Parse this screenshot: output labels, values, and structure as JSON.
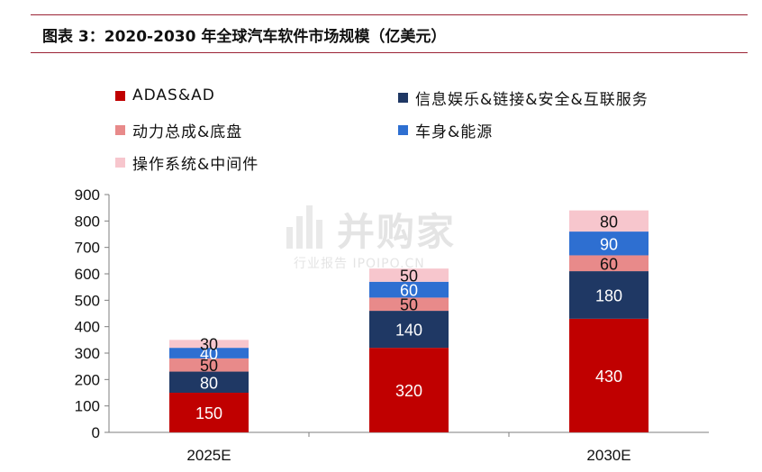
{
  "title": "图表 3：2020-2030 年全球汽车软件市场规模（亿美元）",
  "watermark": {
    "main": "并购家",
    "sub": "行业报告 IPOIPO.CN"
  },
  "chart_data": {
    "type": "bar",
    "stacked": true,
    "categories": [
      "2025E",
      "",
      "2030E"
    ],
    "ylim": [
      0,
      900
    ],
    "yticks": [
      0,
      100,
      200,
      300,
      400,
      500,
      600,
      700,
      800,
      900
    ],
    "grid": false,
    "legend_position": "top",
    "series": [
      {
        "name": "ADAS&AD",
        "color": "#c00000",
        "label_color": "#ffffff",
        "values": [
          150,
          320,
          430
        ]
      },
      {
        "name": "信息娱乐&链接&安全&互联服务",
        "color": "#1f3864",
        "label_color": "#ffffff",
        "values": [
          80,
          140,
          180
        ]
      },
      {
        "name": "动力总成&底盘",
        "color": "#e88a8a",
        "label_color": "#111111",
        "values": [
          50,
          50,
          60
        ]
      },
      {
        "name": "车身&能源",
        "color": "#2e6fd1",
        "label_color": "#ffffff",
        "values": [
          40,
          60,
          90
        ]
      },
      {
        "name": "操作系统&中间件",
        "color": "#f7c6cd",
        "label_color": "#111111",
        "values": [
          30,
          50,
          80
        ]
      }
    ]
  }
}
